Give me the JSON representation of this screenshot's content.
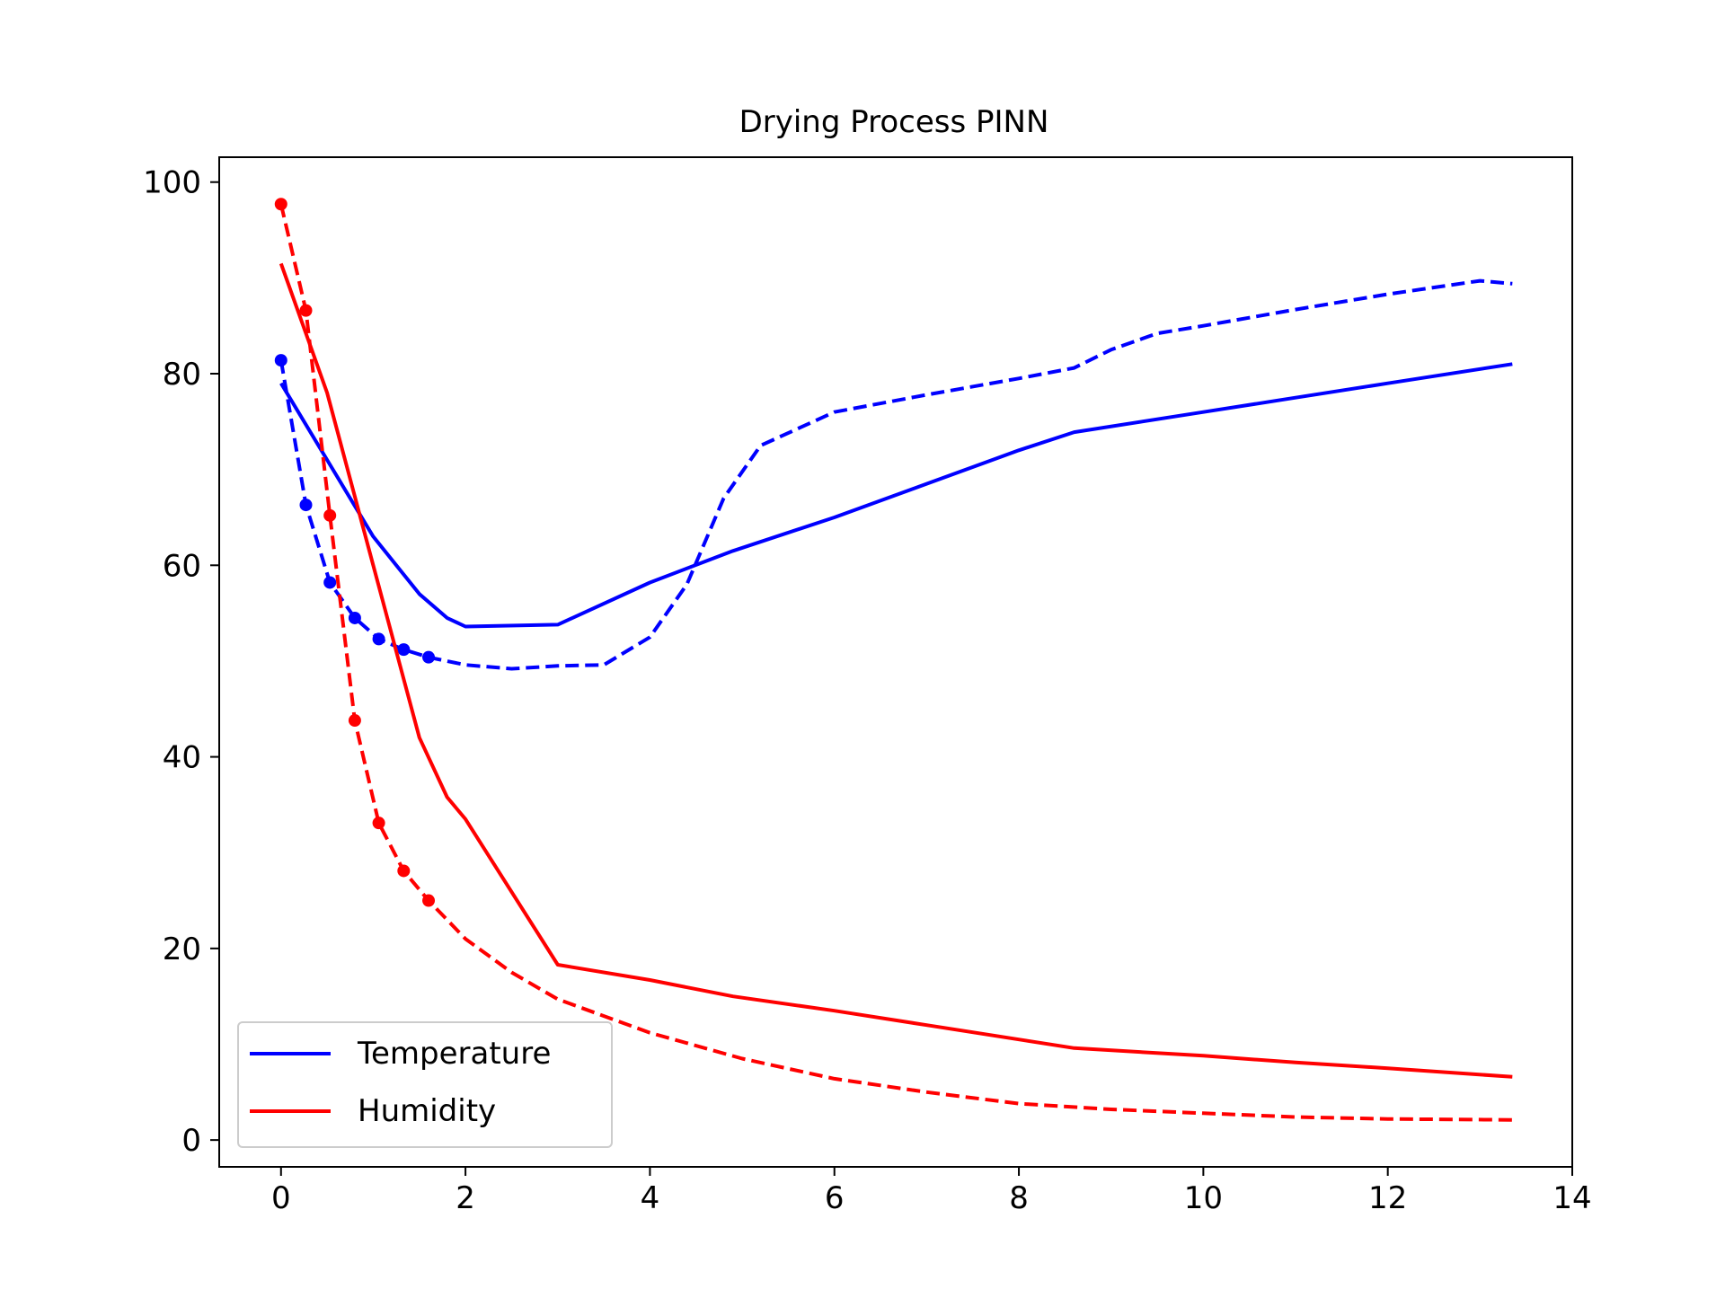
{
  "chart_data": {
    "type": "line",
    "title": "Drying Process PINN",
    "xlabel": "",
    "ylabel": "",
    "xlim": [
      -0.67,
      14.0
    ],
    "ylim": [
      -2.8,
      102.6
    ],
    "x_ticks": [
      0,
      2,
      4,
      6,
      8,
      10,
      12,
      14
    ],
    "y_ticks": [
      0,
      20,
      40,
      60,
      80,
      100
    ],
    "x_tick_labels": [
      "0",
      "2",
      "4",
      "6",
      "8",
      "10",
      "12",
      "14"
    ],
    "y_tick_labels": [
      "0",
      "20",
      "40",
      "60",
      "80",
      "100"
    ],
    "grid": false,
    "legend": {
      "position": "lower-left",
      "entries": [
        {
          "label": "Temperature",
          "color": "#0000ff"
        },
        {
          "label": "Humidity",
          "color": "#ff0000"
        }
      ]
    },
    "series": [
      {
        "name": "Temperature",
        "color": "#0000ff",
        "style": "solid",
        "x": [
          0,
          0.5,
          1.0,
          1.5,
          1.8,
          2.0,
          3.0,
          4.0,
          4.9,
          6.0,
          7.0,
          8.0,
          8.6,
          10.0,
          11.0,
          12.0,
          13.35
        ],
        "y": [
          79.0,
          71.0,
          63.0,
          57.0,
          54.5,
          53.6,
          53.8,
          58.2,
          61.5,
          65.0,
          68.5,
          72.0,
          73.9,
          76.0,
          77.5,
          79.0,
          81.0
        ]
      },
      {
        "name": "",
        "color": "#0000ff",
        "style": "dashed",
        "x": [
          0,
          0.27,
          0.53,
          0.8,
          1.06,
          1.33,
          1.6,
          2.0,
          2.5,
          3.0,
          3.5,
          4.0,
          4.4,
          4.8,
          5.2,
          6.0,
          7.0,
          8.0,
          8.6,
          9.0,
          9.5,
          10.0,
          11.0,
          12.0,
          13.0,
          13.35
        ],
        "y": [
          81.4,
          66.3,
          58.2,
          54.5,
          52.3,
          51.2,
          50.4,
          49.6,
          49.2,
          49.5,
          49.6,
          52.5,
          58.0,
          67.0,
          72.5,
          76.0,
          77.8,
          79.5,
          80.6,
          82.5,
          84.2,
          85.0,
          86.7,
          88.3,
          89.7,
          89.4
        ]
      },
      {
        "name": "",
        "color": "#0000ff",
        "style": "markers",
        "x": [
          0,
          0.27,
          0.53,
          0.8,
          1.06,
          1.33,
          1.6
        ],
        "y": [
          81.4,
          66.3,
          58.2,
          54.5,
          52.3,
          51.2,
          50.4
        ]
      },
      {
        "name": "Humidity",
        "color": "#ff0000",
        "style": "solid",
        "x": [
          0,
          0.5,
          1.0,
          1.5,
          1.8,
          2.0,
          3.0,
          4.0,
          4.9,
          6.0,
          7.0,
          8.0,
          8.6,
          10.0,
          11.0,
          12.0,
          13.35
        ],
        "y": [
          91.5,
          78.0,
          60.0,
          42.0,
          35.8,
          33.5,
          18.3,
          16.7,
          15.0,
          13.5,
          12.0,
          10.5,
          9.6,
          8.8,
          8.1,
          7.5,
          6.6
        ]
      },
      {
        "name": "",
        "color": "#ff0000",
        "style": "dashed",
        "x": [
          0,
          0.27,
          0.53,
          0.8,
          1.06,
          1.33,
          1.6,
          2.0,
          2.5,
          3.0,
          4.0,
          5.0,
          6.0,
          7.0,
          8.0,
          9.0,
          10.0,
          11.0,
          12.0,
          13.35
        ],
        "y": [
          97.7,
          86.6,
          65.2,
          43.8,
          33.1,
          28.1,
          25.0,
          21.0,
          17.5,
          14.7,
          11.2,
          8.5,
          6.4,
          5.0,
          3.8,
          3.2,
          2.8,
          2.4,
          2.2,
          2.1
        ]
      },
      {
        "name": "",
        "color": "#ff0000",
        "style": "markers",
        "x": [
          0,
          0.27,
          0.53,
          0.8,
          1.06,
          1.33,
          1.6
        ],
        "y": [
          97.7,
          86.6,
          65.2,
          43.8,
          33.1,
          28.1,
          25.0
        ]
      }
    ]
  }
}
